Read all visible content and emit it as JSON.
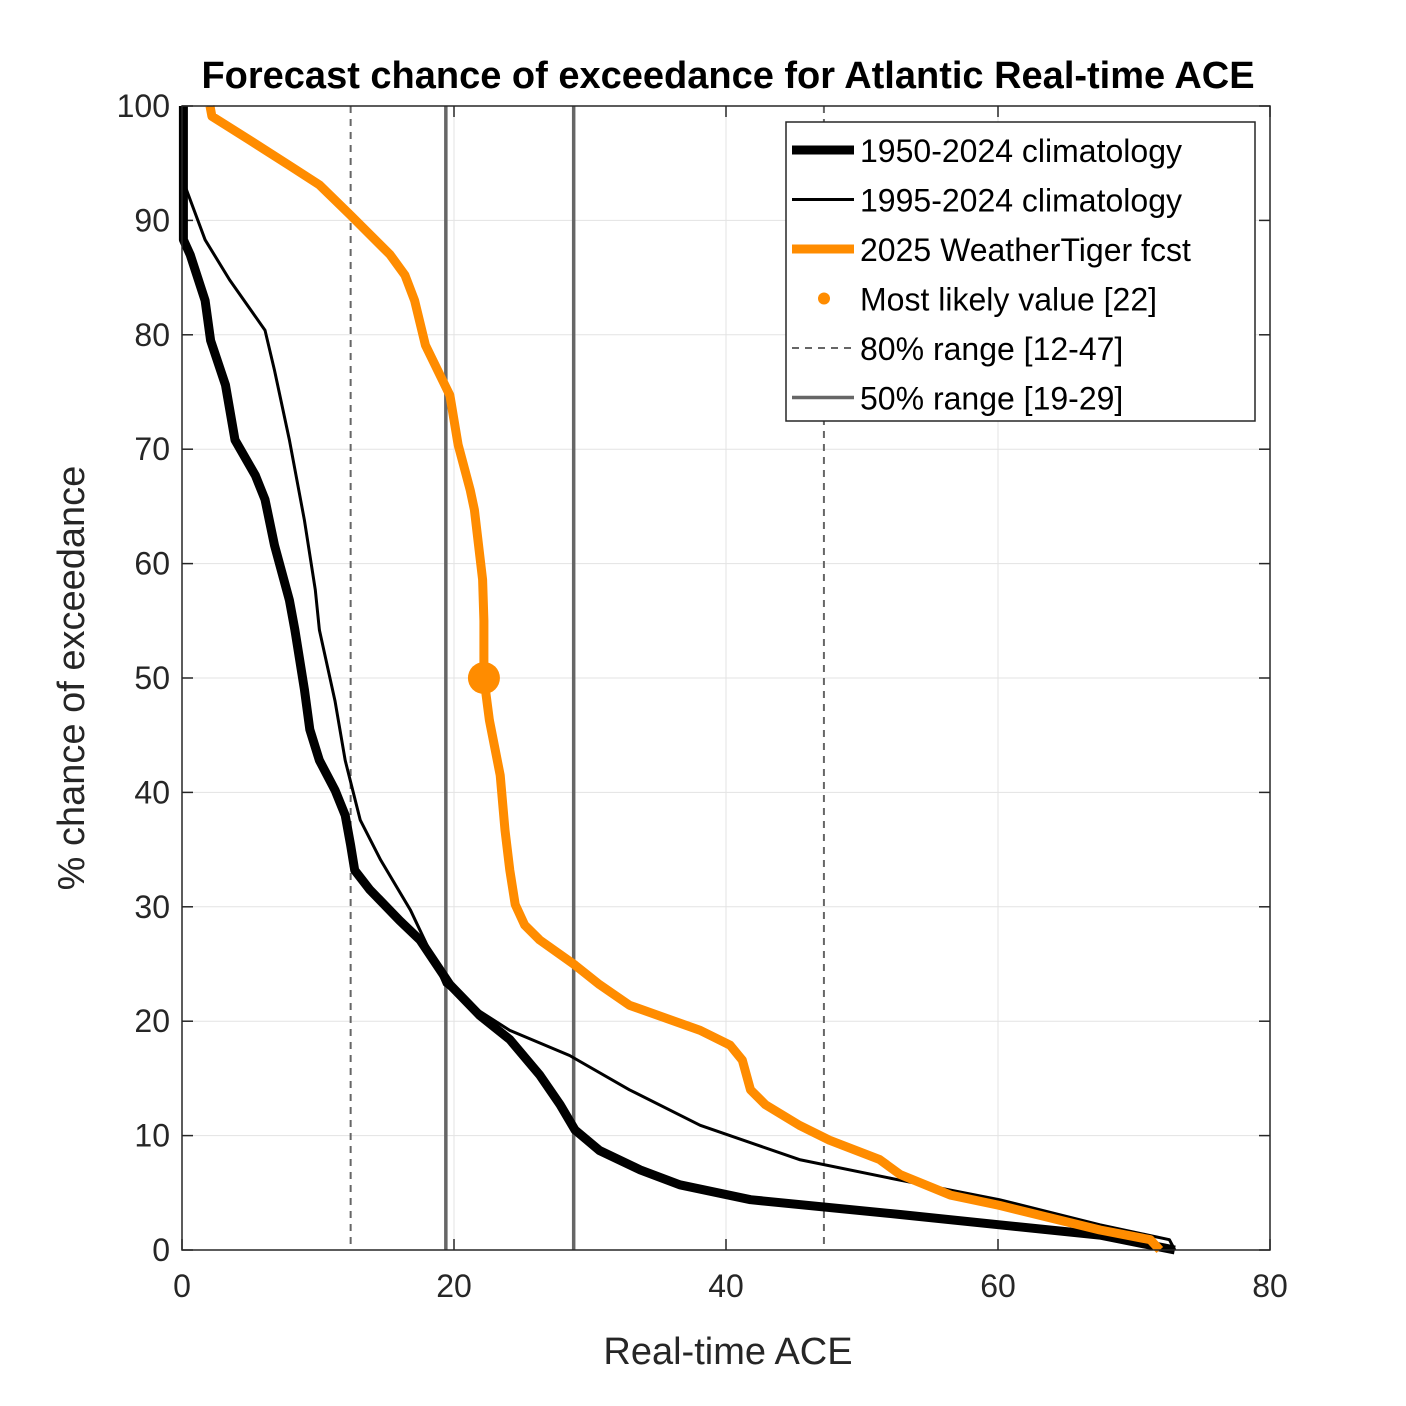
{
  "chart_data": {
    "type": "line",
    "title": "Forecast chance of exceedance for Atlantic Real-time ACE",
    "xlabel": "Real-time ACE",
    "ylabel": "% chance of exceedance",
    "xlim": [
      0,
      80
    ],
    "ylim": [
      0,
      100
    ],
    "xticks": [
      0,
      20,
      40,
      60,
      80
    ],
    "yticks": [
      0,
      10,
      20,
      30,
      40,
      50,
      60,
      70,
      80,
      90,
      100
    ],
    "grid": true,
    "legend_position": "top-right",
    "series": [
      {
        "name": "1950-2024 climatology",
        "color": "#000000",
        "style": "thick",
        "points": [
          [
            0.1,
            100
          ],
          [
            0.1,
            88.3
          ],
          [
            0.6,
            87
          ],
          [
            1.7,
            83
          ],
          [
            2.1,
            79.5
          ],
          [
            3.2,
            75.6
          ],
          [
            3.9,
            70.8
          ],
          [
            5.4,
            67.7
          ],
          [
            6.1,
            65.6
          ],
          [
            6.8,
            61.6
          ],
          [
            7.9,
            56.8
          ],
          [
            8.3,
            54.2
          ],
          [
            9,
            49
          ],
          [
            9.4,
            45.5
          ],
          [
            10.1,
            42.8
          ],
          [
            11.25,
            40.2
          ],
          [
            12,
            38
          ],
          [
            12.4,
            35.4
          ],
          [
            12.7,
            33.2
          ],
          [
            13.8,
            31.5
          ],
          [
            16,
            28.8
          ],
          [
            17.5,
            27.1
          ],
          [
            19.7,
            23.2
          ],
          [
            21.9,
            20.5
          ],
          [
            24.1,
            18.4
          ],
          [
            26.3,
            15.3
          ],
          [
            27.8,
            12.7
          ],
          [
            28.9,
            10.5
          ],
          [
            30.7,
            8.7
          ],
          [
            33.7,
            7
          ],
          [
            36.6,
            5.7
          ],
          [
            41.8,
            4.4
          ],
          [
            52.8,
            3.1
          ],
          [
            60.1,
            2.2
          ],
          [
            67.5,
            1.3
          ],
          [
            73,
            0
          ]
        ]
      },
      {
        "name": "1995-2024 climatology",
        "color": "#000000",
        "style": "thin",
        "points": [
          [
            0.1,
            100
          ],
          [
            0.1,
            93.4
          ],
          [
            1.7,
            88.3
          ],
          [
            3.5,
            84.8
          ],
          [
            6.1,
            80.4
          ],
          [
            6.8,
            76.9
          ],
          [
            7.9,
            70.8
          ],
          [
            9,
            63.8
          ],
          [
            9.8,
            57.7
          ],
          [
            10.1,
            54.2
          ],
          [
            11.25,
            48
          ],
          [
            12,
            42.8
          ],
          [
            13.1,
            37.6
          ],
          [
            14.6,
            34.1
          ],
          [
            16.8,
            29.7
          ],
          [
            18.2,
            26.2
          ],
          [
            19.3,
            23.2
          ],
          [
            21.2,
            21.4
          ],
          [
            24.1,
            19.2
          ],
          [
            28.5,
            17
          ],
          [
            32.9,
            14
          ],
          [
            38.1,
            10.9
          ],
          [
            45.4,
            7.9
          ],
          [
            52.8,
            6.1
          ],
          [
            60.1,
            4.4
          ],
          [
            67.5,
            2.2
          ],
          [
            72.6,
            0.9
          ],
          [
            73,
            0
          ]
        ]
      },
      {
        "name": "2025 WeatherTiger fcst",
        "color": "#FF8C00",
        "style": "thick",
        "points": [
          [
            2.06,
            100
          ],
          [
            2.2,
            99.1
          ],
          [
            5,
            97
          ],
          [
            7.9,
            94.8
          ],
          [
            10.1,
            93.1
          ],
          [
            12.35,
            90.5
          ],
          [
            15.3,
            87
          ],
          [
            16.4,
            85.2
          ],
          [
            17.1,
            83
          ],
          [
            17.9,
            79.1
          ],
          [
            19.7,
            74.7
          ],
          [
            20.3,
            70.4
          ],
          [
            21.2,
            66.4
          ],
          [
            21.5,
            64.7
          ],
          [
            22.1,
            58.6
          ],
          [
            22.2,
            55
          ],
          [
            22.2,
            50
          ],
          [
            22.6,
            46.3
          ],
          [
            23.4,
            41.5
          ],
          [
            23.75,
            36.7
          ],
          [
            24.1,
            33.2
          ],
          [
            24.5,
            30.2
          ],
          [
            25.2,
            28.4
          ],
          [
            26.3,
            27.1
          ],
          [
            28.9,
            24.9
          ],
          [
            30.7,
            23.2
          ],
          [
            32.9,
            21.4
          ],
          [
            38.1,
            19.2
          ],
          [
            40.3,
            17.9
          ],
          [
            41.2,
            16.6
          ],
          [
            41.8,
            14
          ],
          [
            42.9,
            12.7
          ],
          [
            45.4,
            10.9
          ],
          [
            47.6,
            9.6
          ],
          [
            51.3,
            7.9
          ],
          [
            52.8,
            6.6
          ],
          [
            56.5,
            4.8
          ],
          [
            60.1,
            3.9
          ],
          [
            67.5,
            1.75
          ],
          [
            71.2,
            0.9
          ],
          [
            71.9,
            0
          ]
        ]
      }
    ],
    "most_likely": {
      "name": "Most likely value [22]",
      "color": "#FF8C00",
      "x": 22.2,
      "y": 50
    },
    "range80": {
      "name": "80% range [12-47]",
      "color": "#666666",
      "x": [
        12.4,
        47.2
      ]
    },
    "range50": {
      "name": "50% range [19-29]",
      "color": "#666666",
      "x": [
        19.4,
        28.8
      ]
    }
  }
}
